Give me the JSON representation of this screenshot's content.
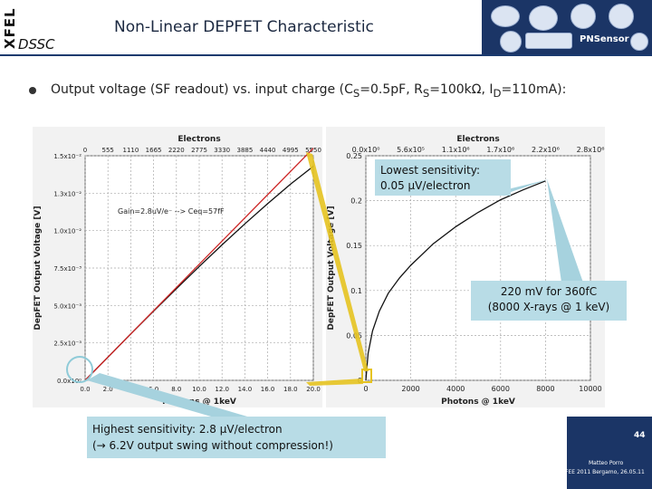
{
  "header": {
    "side_label": "XFEL",
    "project": "DSSC",
    "title": "Non-Linear DEPFET Characteristic",
    "logo_text": "PNSensor"
  },
  "bullet": {
    "text": "Output voltage (SF readout) vs. input charge (C",
    "sub1": "S",
    "mid1": "=0.5pF, R",
    "sub2": "S",
    "mid2": "=100kΩ, I",
    "sub3": "D",
    "tail": "=110mA):"
  },
  "notes": {
    "lowest": [
      "Lowest sensitivity:",
      "0.05 µV/electron"
    ],
    "mid": [
      "220 mV for 360fC",
      "(8000 X-rays @ 1 keV)"
    ],
    "highest": [
      "Highest sensitivity: 2.8 µV/electron",
      "(→ 6.2V output swing without compression!)"
    ]
  },
  "footer": {
    "page_number": "44",
    "author": "Matteo Porro",
    "event": "FEE 2011 Bergamo, 26.05.11"
  },
  "colors": {
    "header_rule": "#1a3a6e",
    "logo_bg": "#1b3566",
    "note_bg": "#b8dce6",
    "connector": "#e6c320",
    "highlight": "#e6c320",
    "curve": "#111111",
    "fit": "#cc2222"
  },
  "icons": {
    "bullet": "bullet-dot-icon"
  },
  "chart_data": [
    {
      "type": "line",
      "title": "",
      "x_top_label": "Electrons",
      "x_top_ticks": [
        "0",
        "555",
        "1110",
        "1665",
        "2220",
        "2775",
        "3330",
        "3885",
        "4440",
        "4995",
        "5550"
      ],
      "xlabel": "Photons @ 1keV",
      "x_ticks": [
        "0.0",
        "2.0",
        "4.0",
        "6.0",
        "8.0",
        "10.0",
        "12.0",
        "14.0",
        "16.0",
        "18.0",
        "20.0"
      ],
      "xlim": [
        0,
        20
      ],
      "ylabel": "DepFET Output Voltage [V]",
      "y_ticks": [
        "0.0x10⁰",
        "2.5x10⁻³",
        "5.0x10⁻³",
        "7.5x10⁻³",
        "1.0x10⁻²",
        "1.3x10⁻²",
        "1.5x10⁻²"
      ],
      "ylim": [
        0,
        0.015
      ],
      "grid": true,
      "annotation": "Gain=2.8uV/e⁻ --> Ceq=57fF",
      "series": [
        {
          "x": [
            0,
            2,
            4,
            6,
            8,
            10,
            12,
            14,
            16,
            18,
            20
          ],
          "y": [
            0,
            0.00155,
            0.0031,
            0.00462,
            0.00612,
            0.0076,
            0.00905,
            0.01045,
            0.0118,
            0.0131,
            0.0143
          ]
        },
        {
          "x": [
            0,
            20
          ],
          "y": [
            0,
            0.0155
          ]
        }
      ]
    },
    {
      "type": "line",
      "title": "",
      "x_top_label": "Electrons",
      "x_top_ticks": [
        "0.0x10⁰",
        "5.6x10⁵",
        "1.1x10⁶",
        "1.7x10⁶",
        "2.2x10⁶",
        "2.8x10⁶"
      ],
      "xlabel": "Photons @ 1keV",
      "x_ticks": [
        "0",
        "2000",
        "4000",
        "6000",
        "8000",
        "10000"
      ],
      "xlim": [
        0,
        10000
      ],
      "ylabel": "DepFET Output Voltage [V]",
      "y_ticks": [
        "0",
        "0.05",
        "0.1",
        "0.15",
        "0.2",
        "0.25"
      ],
      "ylim": [
        0,
        0.25
      ],
      "grid": true,
      "series": [
        {
          "x": [
            0,
            100,
            300,
            600,
            1000,
            1500,
            2000,
            3000,
            4000,
            5000,
            6000,
            7000,
            8000
          ],
          "y": [
            0,
            0.03,
            0.055,
            0.077,
            0.097,
            0.114,
            0.128,
            0.152,
            0.171,
            0.187,
            0.201,
            0.212,
            0.222
          ]
        }
      ]
    }
  ]
}
